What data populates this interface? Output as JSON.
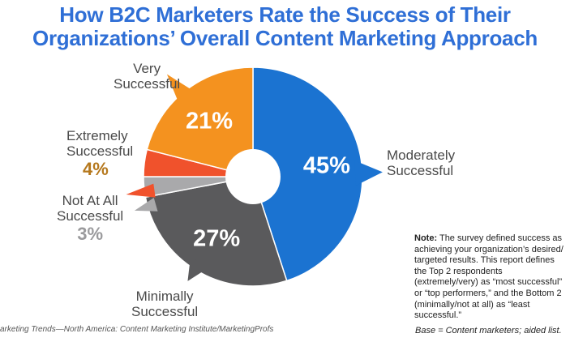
{
  "title": {
    "line1": "How B2C Marketers Rate the Success of Their",
    "line2": "Organizations’ Overall Content Marketing Approach"
  },
  "chart_data": {
    "type": "pie",
    "title": "How B2C Marketers Rate the Success of Their Organizations’ Overall Content Marketing Approach",
    "donut": true,
    "slices": [
      {
        "label": "Moderately Successful",
        "label_lines": [
          "Moderately",
          "Successful"
        ],
        "value": 45,
        "display": "45%",
        "color": "#1b73d1"
      },
      {
        "label": "Minimally Successful",
        "label_lines": [
          "Minimally",
          "Successful"
        ],
        "value": 27,
        "display": "27%",
        "color": "#5a5a5c"
      },
      {
        "label": "Not At All Successful",
        "label_lines": [
          "Not At All",
          "Successful"
        ],
        "value": 3,
        "display": "3%",
        "color": "#a9a9ab"
      },
      {
        "label": "Extremely Successful",
        "label_lines": [
          "Extremely",
          "Successful"
        ],
        "value": 4,
        "display": "4%",
        "color": "#f0522c"
      },
      {
        "label": "Very Successful",
        "label_lines": [
          "Very",
          "Successful"
        ],
        "value": 21,
        "display": "21%",
        "color": "#f4921f"
      }
    ]
  },
  "note": {
    "bold": "Note:",
    "text": "The survey defined success as achieving your organization’s desired/ targeted results. This report defines the Top 2 respondents (extremely/very) as “most successful” or “top performers,” and the Bottom 2 (minimally/not at all) as “least successful.”"
  },
  "base": "Base = Content marketers; aided list.",
  "source": "arketing Trends—North America: Content Marketing Institute/MarketingProfs"
}
